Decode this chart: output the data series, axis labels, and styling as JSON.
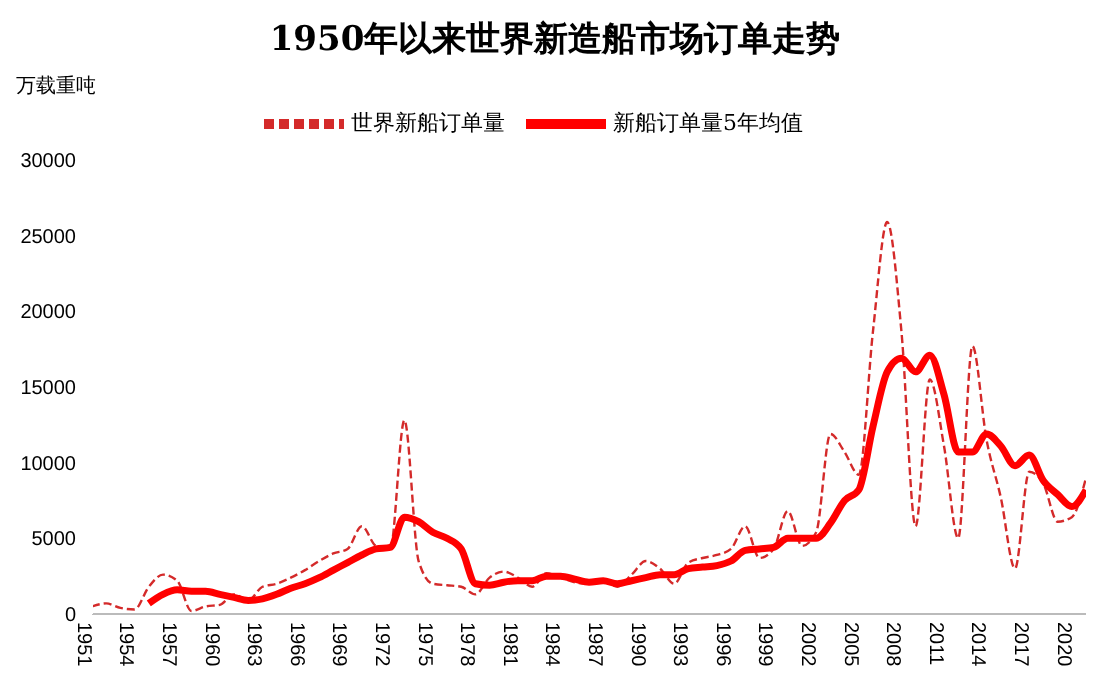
{
  "chart_data": {
    "type": "line",
    "title": "1950年以来世界新造船市场订单走势",
    "ylabel": "万载重吨",
    "x": [
      1951,
      1952,
      1953,
      1954,
      1955,
      1956,
      1957,
      1958,
      1959,
      1960,
      1961,
      1962,
      1963,
      1964,
      1965,
      1966,
      1967,
      1968,
      1969,
      1970,
      1971,
      1972,
      1973,
      1974,
      1975,
      1976,
      1977,
      1978,
      1979,
      1980,
      1981,
      1982,
      1983,
      1984,
      1985,
      1986,
      1987,
      1988,
      1989,
      1990,
      1991,
      1992,
      1993,
      1994,
      1995,
      1996,
      1997,
      1998,
      1999,
      2000,
      2001,
      2002,
      2003,
      2004,
      2005,
      2006,
      2007,
      2008,
      2009,
      2010,
      2011,
      2012,
      2013,
      2014,
      2015,
      2016,
      2017,
      2018,
      2019,
      2020,
      2021
    ],
    "series": [
      {
        "name": "世界新船订单量",
        "color": "#d42a2a",
        "line_style": "dashed",
        "values": [
          500,
          700,
          400,
          300,
          1800,
          2600,
          2200,
          200,
          500,
          600,
          1300,
          900,
          1800,
          2000,
          2400,
          2900,
          3500,
          4000,
          4300,
          5800,
          4500,
          4300,
          12800,
          3500,
          2000,
          1900,
          1800,
          1300,
          2400,
          2800,
          2400,
          1800,
          2700,
          2400,
          2100,
          2000,
          2200,
          1800,
          2600,
          3500,
          3000,
          2000,
          3400,
          3700,
          3900,
          4300,
          5800,
          3700,
          4300,
          6800,
          4500,
          5400,
          11900,
          10700,
          9200,
          18700,
          25900,
          18700,
          5800,
          15500,
          11100,
          5000,
          17700,
          11500,
          7700,
          3000,
          9400,
          8600,
          6100,
          6400,
          9000
        ]
      },
      {
        "name": "新船订单量5年均值",
        "color": "#ff0000",
        "line_style": "solid",
        "values": [
          null,
          null,
          null,
          null,
          700,
          1300,
          1600,
          1500,
          1500,
          1300,
          1100,
          900,
          1000,
          1300,
          1700,
          2000,
          2400,
          2900,
          3400,
          3900,
          4300,
          4400,
          6400,
          6100,
          5400,
          5000,
          4300,
          2000,
          1900,
          2100,
          2200,
          2200,
          2500,
          2500,
          2300,
          2100,
          2200,
          2000,
          2200,
          2400,
          2600,
          2600,
          3000,
          3100,
          3200,
          3500,
          4200,
          4300,
          4400,
          5000,
          5000,
          5000,
          6000,
          7500,
          8200,
          12400,
          16000,
          16900,
          16000,
          17100,
          14500,
          10700,
          10700,
          11900,
          11100,
          9800,
          10500,
          8800,
          7900,
          7100,
          8200
        ]
      }
    ],
    "xlim": [
      1951,
      2021
    ],
    "xticks": [
      1951,
      1954,
      1957,
      1960,
      1963,
      1966,
      1969,
      1972,
      1975,
      1978,
      1981,
      1984,
      1987,
      1990,
      1993,
      1996,
      1999,
      2002,
      2005,
      2008,
      2011,
      2014,
      2017,
      2020
    ],
    "ylim": [
      0,
      30000
    ],
    "yticks": [
      0,
      5000,
      10000,
      15000,
      20000,
      25000,
      30000
    ],
    "grid": false,
    "legend": "top",
    "marker": "none"
  }
}
